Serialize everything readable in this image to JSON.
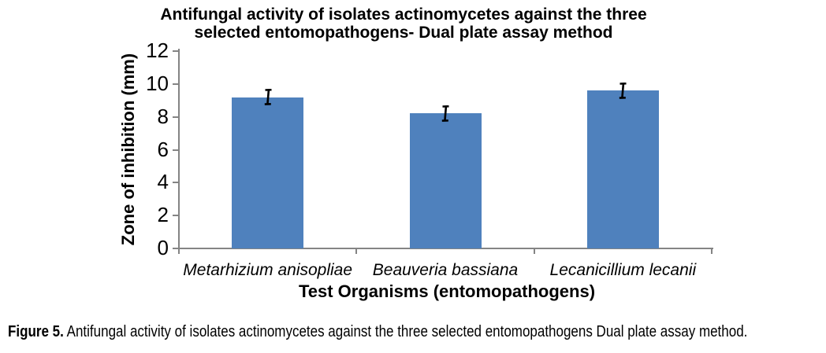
{
  "figure": {
    "caption_prefix": "Figure 5.",
    "caption_body": " Antifungal activity of isolates actinomycetes against the three selected entomopathogens Dual plate assay method."
  },
  "chart_data": {
    "type": "bar",
    "title": "Antifungal activity of isolates actinomycetes against the three selected entomopathogens- Dual plate assay method",
    "title_lines": [
      "Antifungal activity of isolates actinomycetes against the three",
      "selected entomopathogens- Dual plate assay method"
    ],
    "xlabel": "Test Organisms (entomopathogens)",
    "ylabel": "Zone of inhibition (mm)",
    "categories": [
      "Metarhizium anisopliae",
      "Beauveria bassiana",
      "Lecanicillium lecanii"
    ],
    "values": [
      9.2,
      8.2,
      9.6
    ],
    "error_bars": [
      0.5,
      0.5,
      0.5
    ],
    "ylim": [
      0,
      12
    ],
    "yticks": [
      0,
      2,
      4,
      6,
      8,
      10,
      12
    ],
    "grid": false,
    "legend": false,
    "bar_color": "#4F81BD",
    "axis_color": "#848484",
    "error_bar_color": "#000000"
  }
}
